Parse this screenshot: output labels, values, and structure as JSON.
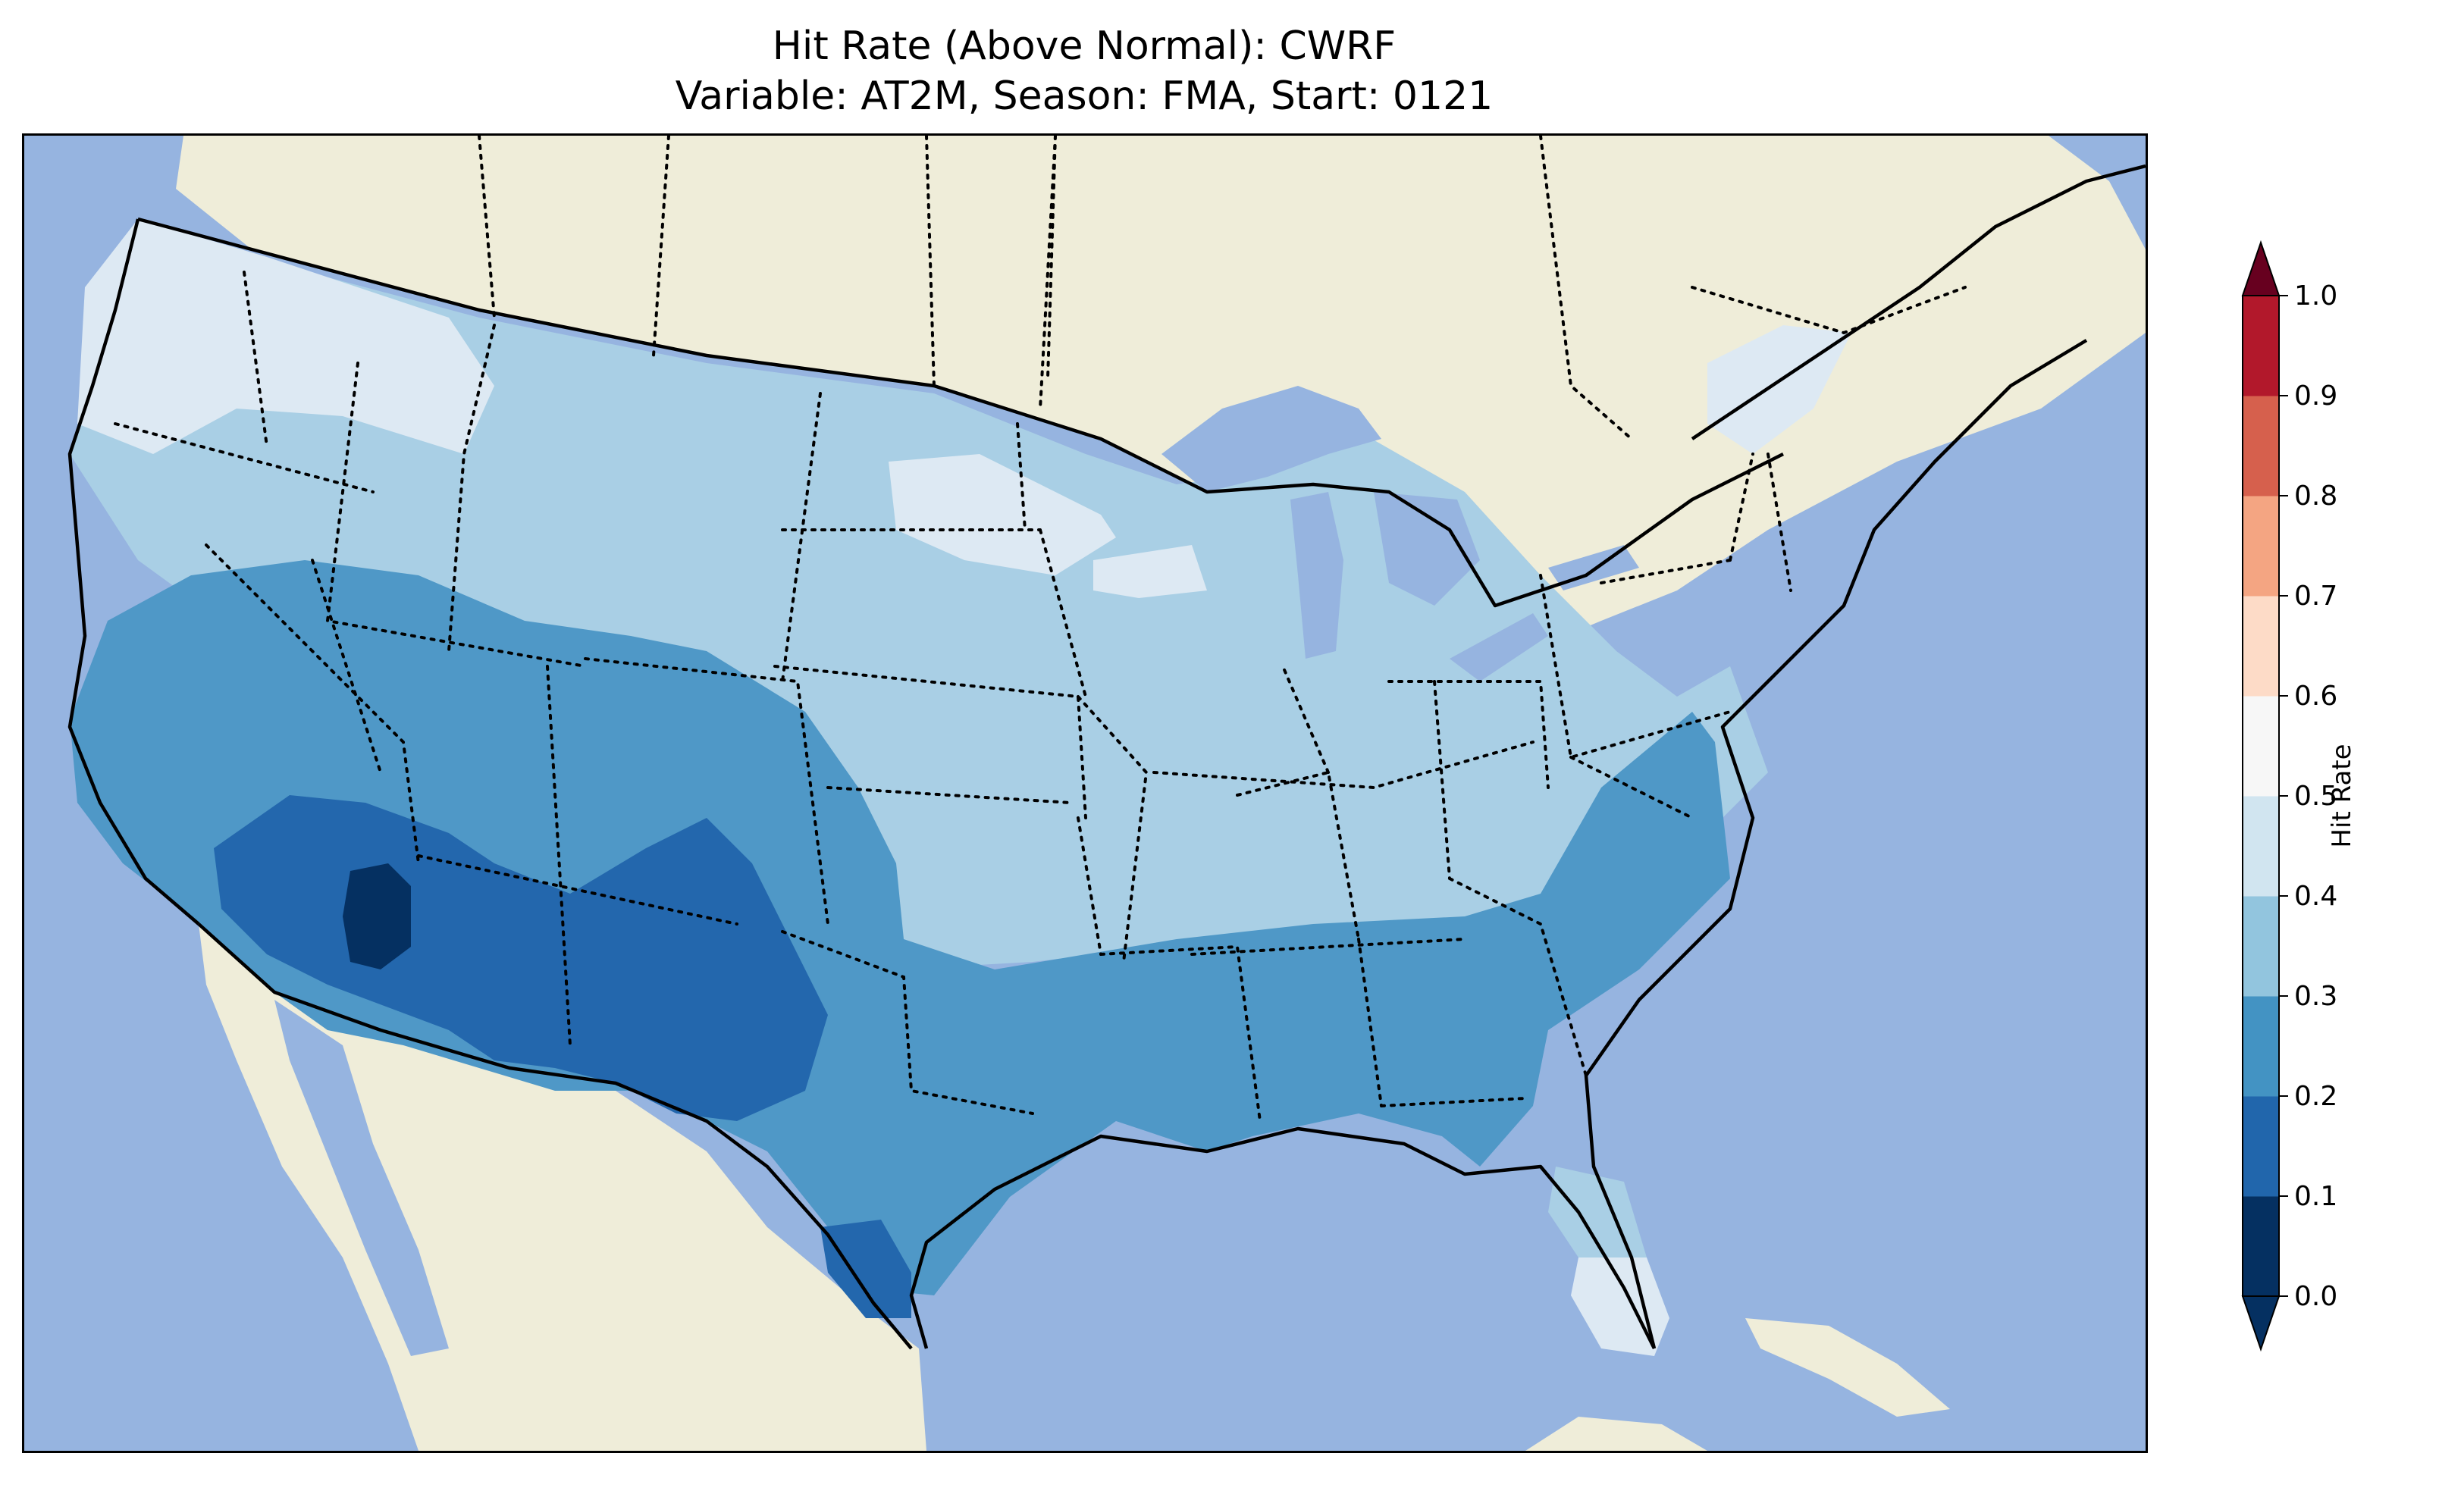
{
  "title": {
    "line1": "Hit Rate (Above Normal): CWRF",
    "line2": "Variable: AT2M, Season: FMA, Start: 0121"
  },
  "colors": {
    "ocean": "#96b4e0",
    "land": "#efedd9",
    "lakes": "#96b4e0"
  },
  "colorbar": {
    "label": "Hit Rate",
    "ticks": [
      "0.0",
      "0.1",
      "0.2",
      "0.3",
      "0.4",
      "0.5",
      "0.6",
      "0.7",
      "0.8",
      "0.9",
      "1.0"
    ],
    "bin_colors": [
      "#053061",
      "#2166ac",
      "#4393c3",
      "#92c5de",
      "#d1e5f0",
      "#f7f7f7",
      "#fddbc7",
      "#f4a582",
      "#d6604d",
      "#b2182b"
    ],
    "under_color": "#053061",
    "over_color": "#67001f",
    "extend": "both"
  },
  "map_data": {
    "type": "choropleth-grid",
    "variable": "AT2M",
    "season": "FMA",
    "start": "0121",
    "model": "CWRF",
    "region_classes": {
      "pacific_northwest": "0.4-0.5",
      "northern_plains_midwest": "0.3-0.4",
      "northeast": "0.3-0.4",
      "great_basin_southwest": "0.2-0.3",
      "southeast": "0.2-0.3",
      "arizona_new_mexico_west_texas": "0.1-0.2",
      "southern_arizona_core": "0.0-0.1",
      "south_florida": "0.4-0.5"
    }
  }
}
